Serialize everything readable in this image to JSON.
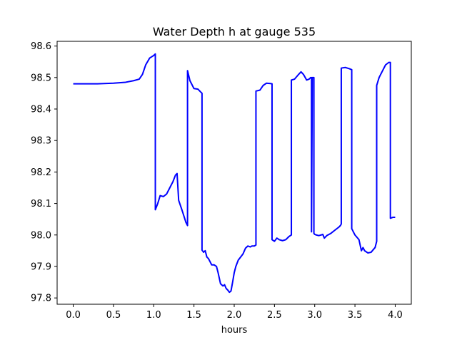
{
  "chart_data": {
    "type": "line",
    "title": "Water Depth h at gauge 535",
    "xlabel": "hours",
    "ylabel": "",
    "xlim": [
      -0.2,
      4.2
    ],
    "ylim": [
      97.78,
      98.615
    ],
    "xticks": [
      0.0,
      0.5,
      1.0,
      1.5,
      2.0,
      2.5,
      3.0,
      3.5,
      4.0
    ],
    "xtick_labels": [
      "0.0",
      "0.5",
      "1.0",
      "1.5",
      "2.0",
      "2.5",
      "3.0",
      "3.5",
      "4.0"
    ],
    "yticks": [
      97.8,
      97.9,
      98.0,
      98.1,
      98.2,
      98.3,
      98.4,
      98.5,
      98.6
    ],
    "ytick_labels": [
      "97.8",
      "97.9",
      "98.0",
      "98.1",
      "98.2",
      "98.3",
      "98.4",
      "98.5",
      "98.6"
    ],
    "grid": false,
    "legend": "none",
    "series": [
      {
        "color": "#0000ff",
        "x": [
          0.0,
          0.3,
          0.5,
          0.65,
          0.75,
          0.82,
          0.86,
          0.9,
          0.95,
          1.0,
          1.02,
          1.02,
          1.05,
          1.08,
          1.12,
          1.16,
          1.2,
          1.24,
          1.27,
          1.29,
          1.31,
          1.35,
          1.4,
          1.42,
          1.42,
          1.45,
          1.5,
          1.55,
          1.58,
          1.6,
          1.6,
          1.62,
          1.64,
          1.66,
          1.68,
          1.7,
          1.72,
          1.75,
          1.78,
          1.8,
          1.83,
          1.86,
          1.88,
          1.9,
          1.92,
          1.94,
          1.96,
          1.98,
          2.0,
          2.02,
          2.05,
          2.08,
          2.11,
          2.14,
          2.17,
          2.2,
          2.22,
          2.25,
          2.27,
          2.27,
          2.32,
          2.36,
          2.4,
          2.45,
          2.47,
          2.47,
          2.5,
          2.53,
          2.56,
          2.6,
          2.64,
          2.68,
          2.71,
          2.71,
          2.75,
          2.8,
          2.83,
          2.86,
          2.9,
          2.93,
          2.95,
          2.96,
          2.96,
          2.97,
          2.98,
          2.99,
          2.99,
          3.0,
          3.02,
          3.05,
          3.08,
          3.1,
          3.12,
          3.15,
          3.2,
          3.25,
          3.3,
          3.32,
          3.33,
          3.33,
          3.38,
          3.43,
          3.46,
          3.46,
          3.5,
          3.55,
          3.58,
          3.6,
          3.62,
          3.66,
          3.7,
          3.75,
          3.77,
          3.77,
          3.8,
          3.84,
          3.88,
          3.92,
          3.94,
          3.94,
          3.97,
          4.0
        ],
        "y": [
          98.48,
          98.48,
          98.482,
          98.485,
          98.49,
          98.495,
          98.51,
          98.54,
          98.562,
          98.57,
          98.575,
          98.08,
          98.1,
          98.125,
          98.122,
          98.13,
          98.15,
          98.17,
          98.19,
          98.195,
          98.11,
          98.08,
          98.04,
          98.03,
          98.522,
          98.49,
          98.465,
          98.463,
          98.455,
          98.45,
          97.952,
          97.945,
          97.95,
          97.93,
          97.925,
          97.915,
          97.905,
          97.905,
          97.9,
          97.88,
          97.845,
          97.838,
          97.842,
          97.83,
          97.825,
          97.818,
          97.822,
          97.85,
          97.88,
          97.9,
          97.92,
          97.93,
          97.94,
          97.958,
          97.965,
          97.962,
          97.965,
          97.965,
          97.968,
          98.457,
          98.46,
          98.475,
          98.482,
          98.481,
          98.48,
          97.985,
          97.98,
          97.99,
          97.985,
          97.982,
          97.985,
          97.995,
          98.0,
          98.492,
          98.495,
          98.51,
          98.518,
          98.51,
          98.492,
          98.495,
          98.5,
          98.5,
          98.01,
          98.5,
          98.5,
          98.5,
          98.005,
          98.002,
          98.0,
          97.998,
          98.0,
          98.002,
          97.99,
          97.998,
          98.005,
          98.015,
          98.025,
          98.03,
          98.035,
          98.53,
          98.532,
          98.528,
          98.525,
          98.02,
          98.0,
          97.985,
          97.95,
          97.96,
          97.95,
          97.943,
          97.945,
          97.96,
          97.98,
          98.475,
          98.5,
          98.52,
          98.54,
          98.548,
          98.548,
          98.053,
          98.056,
          98.056
        ]
      }
    ]
  }
}
